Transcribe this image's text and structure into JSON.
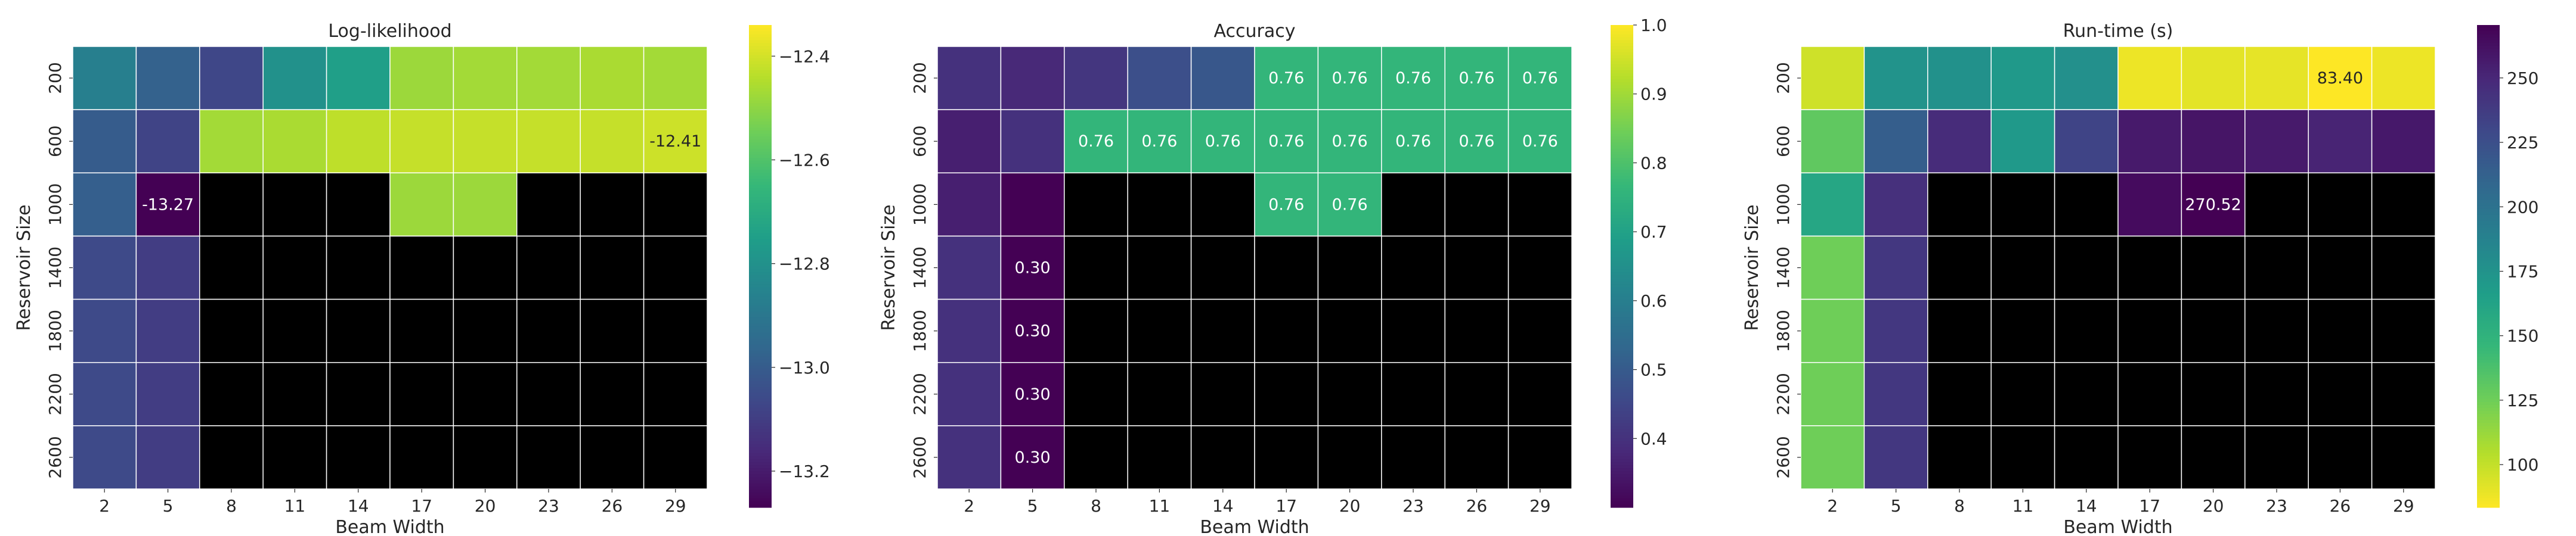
{
  "chart_data": [
    {
      "type": "heatmap",
      "title": "Log-likelihood",
      "xlabel": "Beam Width",
      "ylabel": "Reservoir Size",
      "x": [
        "2",
        "5",
        "8",
        "11",
        "14",
        "17",
        "20",
        "23",
        "26",
        "29"
      ],
      "y": [
        "200",
        "600",
        "1000",
        "1400",
        "1800",
        "2200",
        "2600"
      ],
      "values": [
        [
          -12.87,
          -12.98,
          -13.07,
          -12.8,
          -12.75,
          -12.48,
          -12.47,
          -12.47,
          -12.46,
          -12.47
        ],
        [
          -13.0,
          -13.08,
          -12.47,
          -12.46,
          -12.43,
          -12.42,
          -12.42,
          -12.42,
          -12.42,
          -12.41
        ],
        [
          -12.99,
          -13.27,
          null,
          null,
          null,
          -12.48,
          -12.48,
          null,
          null,
          null
        ],
        [
          -13.06,
          -13.1,
          null,
          null,
          null,
          null,
          null,
          null,
          null,
          null
        ],
        [
          -13.06,
          -13.1,
          null,
          null,
          null,
          null,
          null,
          null,
          null,
          null
        ],
        [
          -13.06,
          -13.1,
          null,
          null,
          null,
          null,
          null,
          null,
          null,
          null
        ],
        [
          -13.06,
          -13.1,
          null,
          null,
          null,
          null,
          null,
          null,
          null,
          null
        ]
      ],
      "annotations": [
        {
          "row": 1,
          "col": 9,
          "text": "-12.41"
        },
        {
          "row": 2,
          "col": 1,
          "text": "-13.27"
        }
      ],
      "colormap": "viridis",
      "reverse_colormap": false,
      "vmin": -13.27,
      "vmax": -12.34,
      "missing_color": "#000000",
      "colorbar_ticks": [
        {
          "value": -12.4,
          "label": "−12.4"
        },
        {
          "value": -12.6,
          "label": "−12.6"
        },
        {
          "value": -12.8,
          "label": "−12.8"
        },
        {
          "value": -13.0,
          "label": "−13.0"
        },
        {
          "value": -13.2,
          "label": "−13.2"
        }
      ]
    },
    {
      "type": "heatmap",
      "title": "Accuracy",
      "xlabel": "Beam Width",
      "ylabel": "Reservoir Size",
      "x": [
        "2",
        "5",
        "8",
        "11",
        "14",
        "17",
        "20",
        "23",
        "26",
        "29"
      ],
      "y": [
        "200",
        "600",
        "1000",
        "1400",
        "1800",
        "2200",
        "2600"
      ],
      "values": [
        [
          0.4,
          0.38,
          0.41,
          0.47,
          0.49,
          0.76,
          0.76,
          0.76,
          0.76,
          0.76
        ],
        [
          0.36,
          0.4,
          0.76,
          0.76,
          0.76,
          0.76,
          0.76,
          0.76,
          0.76,
          0.76
        ],
        [
          0.36,
          0.3,
          null,
          null,
          null,
          0.76,
          0.76,
          null,
          null,
          null
        ],
        [
          0.4,
          0.3,
          null,
          null,
          null,
          null,
          null,
          null,
          null,
          null
        ],
        [
          0.4,
          0.3,
          null,
          null,
          null,
          null,
          null,
          null,
          null,
          null
        ],
        [
          0.4,
          0.3,
          null,
          null,
          null,
          null,
          null,
          null,
          null,
          null
        ],
        [
          0.4,
          0.3,
          null,
          null,
          null,
          null,
          null,
          null,
          null,
          null
        ]
      ],
      "annotations": [
        {
          "row": 0,
          "col": 5,
          "text": "0.76"
        },
        {
          "row": 0,
          "col": 6,
          "text": "0.76"
        },
        {
          "row": 0,
          "col": 7,
          "text": "0.76"
        },
        {
          "row": 0,
          "col": 8,
          "text": "0.76"
        },
        {
          "row": 0,
          "col": 9,
          "text": "0.76"
        },
        {
          "row": 1,
          "col": 2,
          "text": "0.76"
        },
        {
          "row": 1,
          "col": 3,
          "text": "0.76"
        },
        {
          "row": 1,
          "col": 4,
          "text": "0.76"
        },
        {
          "row": 1,
          "col": 5,
          "text": "0.76"
        },
        {
          "row": 1,
          "col": 6,
          "text": "0.76"
        },
        {
          "row": 1,
          "col": 7,
          "text": "0.76"
        },
        {
          "row": 1,
          "col": 8,
          "text": "0.76"
        },
        {
          "row": 1,
          "col": 9,
          "text": "0.76"
        },
        {
          "row": 2,
          "col": 5,
          "text": "0.76"
        },
        {
          "row": 2,
          "col": 6,
          "text": "0.76"
        },
        {
          "row": 3,
          "col": 1,
          "text": "0.30"
        },
        {
          "row": 4,
          "col": 1,
          "text": "0.30"
        },
        {
          "row": 5,
          "col": 1,
          "text": "0.30"
        },
        {
          "row": 6,
          "col": 1,
          "text": "0.30"
        }
      ],
      "colormap": "viridis",
      "reverse_colormap": false,
      "vmin": 0.3,
      "vmax": 1.0,
      "missing_color": "#000000",
      "colorbar_ticks": [
        {
          "value": 1.0,
          "label": "1.0"
        },
        {
          "value": 0.9,
          "label": "0.9"
        },
        {
          "value": 0.8,
          "label": "0.8"
        },
        {
          "value": 0.7,
          "label": "0.7"
        },
        {
          "value": 0.6,
          "label": "0.6"
        },
        {
          "value": 0.5,
          "label": "0.5"
        },
        {
          "value": 0.4,
          "label": "0.4"
        }
      ]
    },
    {
      "type": "heatmap",
      "title": "Run-time (s)",
      "xlabel": "Beam Width",
      "ylabel": "Reservoir Size",
      "x": [
        "2",
        "5",
        "8",
        "11",
        "14",
        "17",
        "20",
        "23",
        "26",
        "29"
      ],
      "y": [
        "200",
        "600",
        "1000",
        "1400",
        "1800",
        "2200",
        "2600"
      ],
      "values": [
        [
          97,
          175,
          176,
          170,
          177,
          88,
          91,
          90,
          83.4,
          88
        ],
        [
          130,
          215,
          247,
          170,
          232,
          257,
          260,
          257,
          252,
          258
        ],
        [
          160,
          245,
          null,
          null,
          null,
          265,
          270.52,
          null,
          null,
          null
        ],
        [
          125,
          240,
          null,
          null,
          null,
          null,
          null,
          null,
          null,
          null
        ],
        [
          125,
          240,
          null,
          null,
          null,
          null,
          null,
          null,
          null,
          null
        ],
        [
          125,
          240,
          null,
          null,
          null,
          null,
          null,
          null,
          null,
          null
        ],
        [
          125,
          240,
          null,
          null,
          null,
          null,
          null,
          null,
          null,
          null
        ]
      ],
      "annotations": [
        {
          "row": 0,
          "col": 8,
          "text": "83.40"
        },
        {
          "row": 2,
          "col": 6,
          "text": "270.52"
        }
      ],
      "colormap": "viridis",
      "reverse_colormap": true,
      "vmin": 83.4,
      "vmax": 270.52,
      "missing_color": "#000000",
      "colorbar_ticks": [
        {
          "value": 250,
          "label": "250"
        },
        {
          "value": 225,
          "label": "225"
        },
        {
          "value": 200,
          "label": "200"
        },
        {
          "value": 175,
          "label": "175"
        },
        {
          "value": 150,
          "label": "150"
        },
        {
          "value": 125,
          "label": "125"
        },
        {
          "value": 100,
          "label": "100"
        }
      ]
    }
  ]
}
